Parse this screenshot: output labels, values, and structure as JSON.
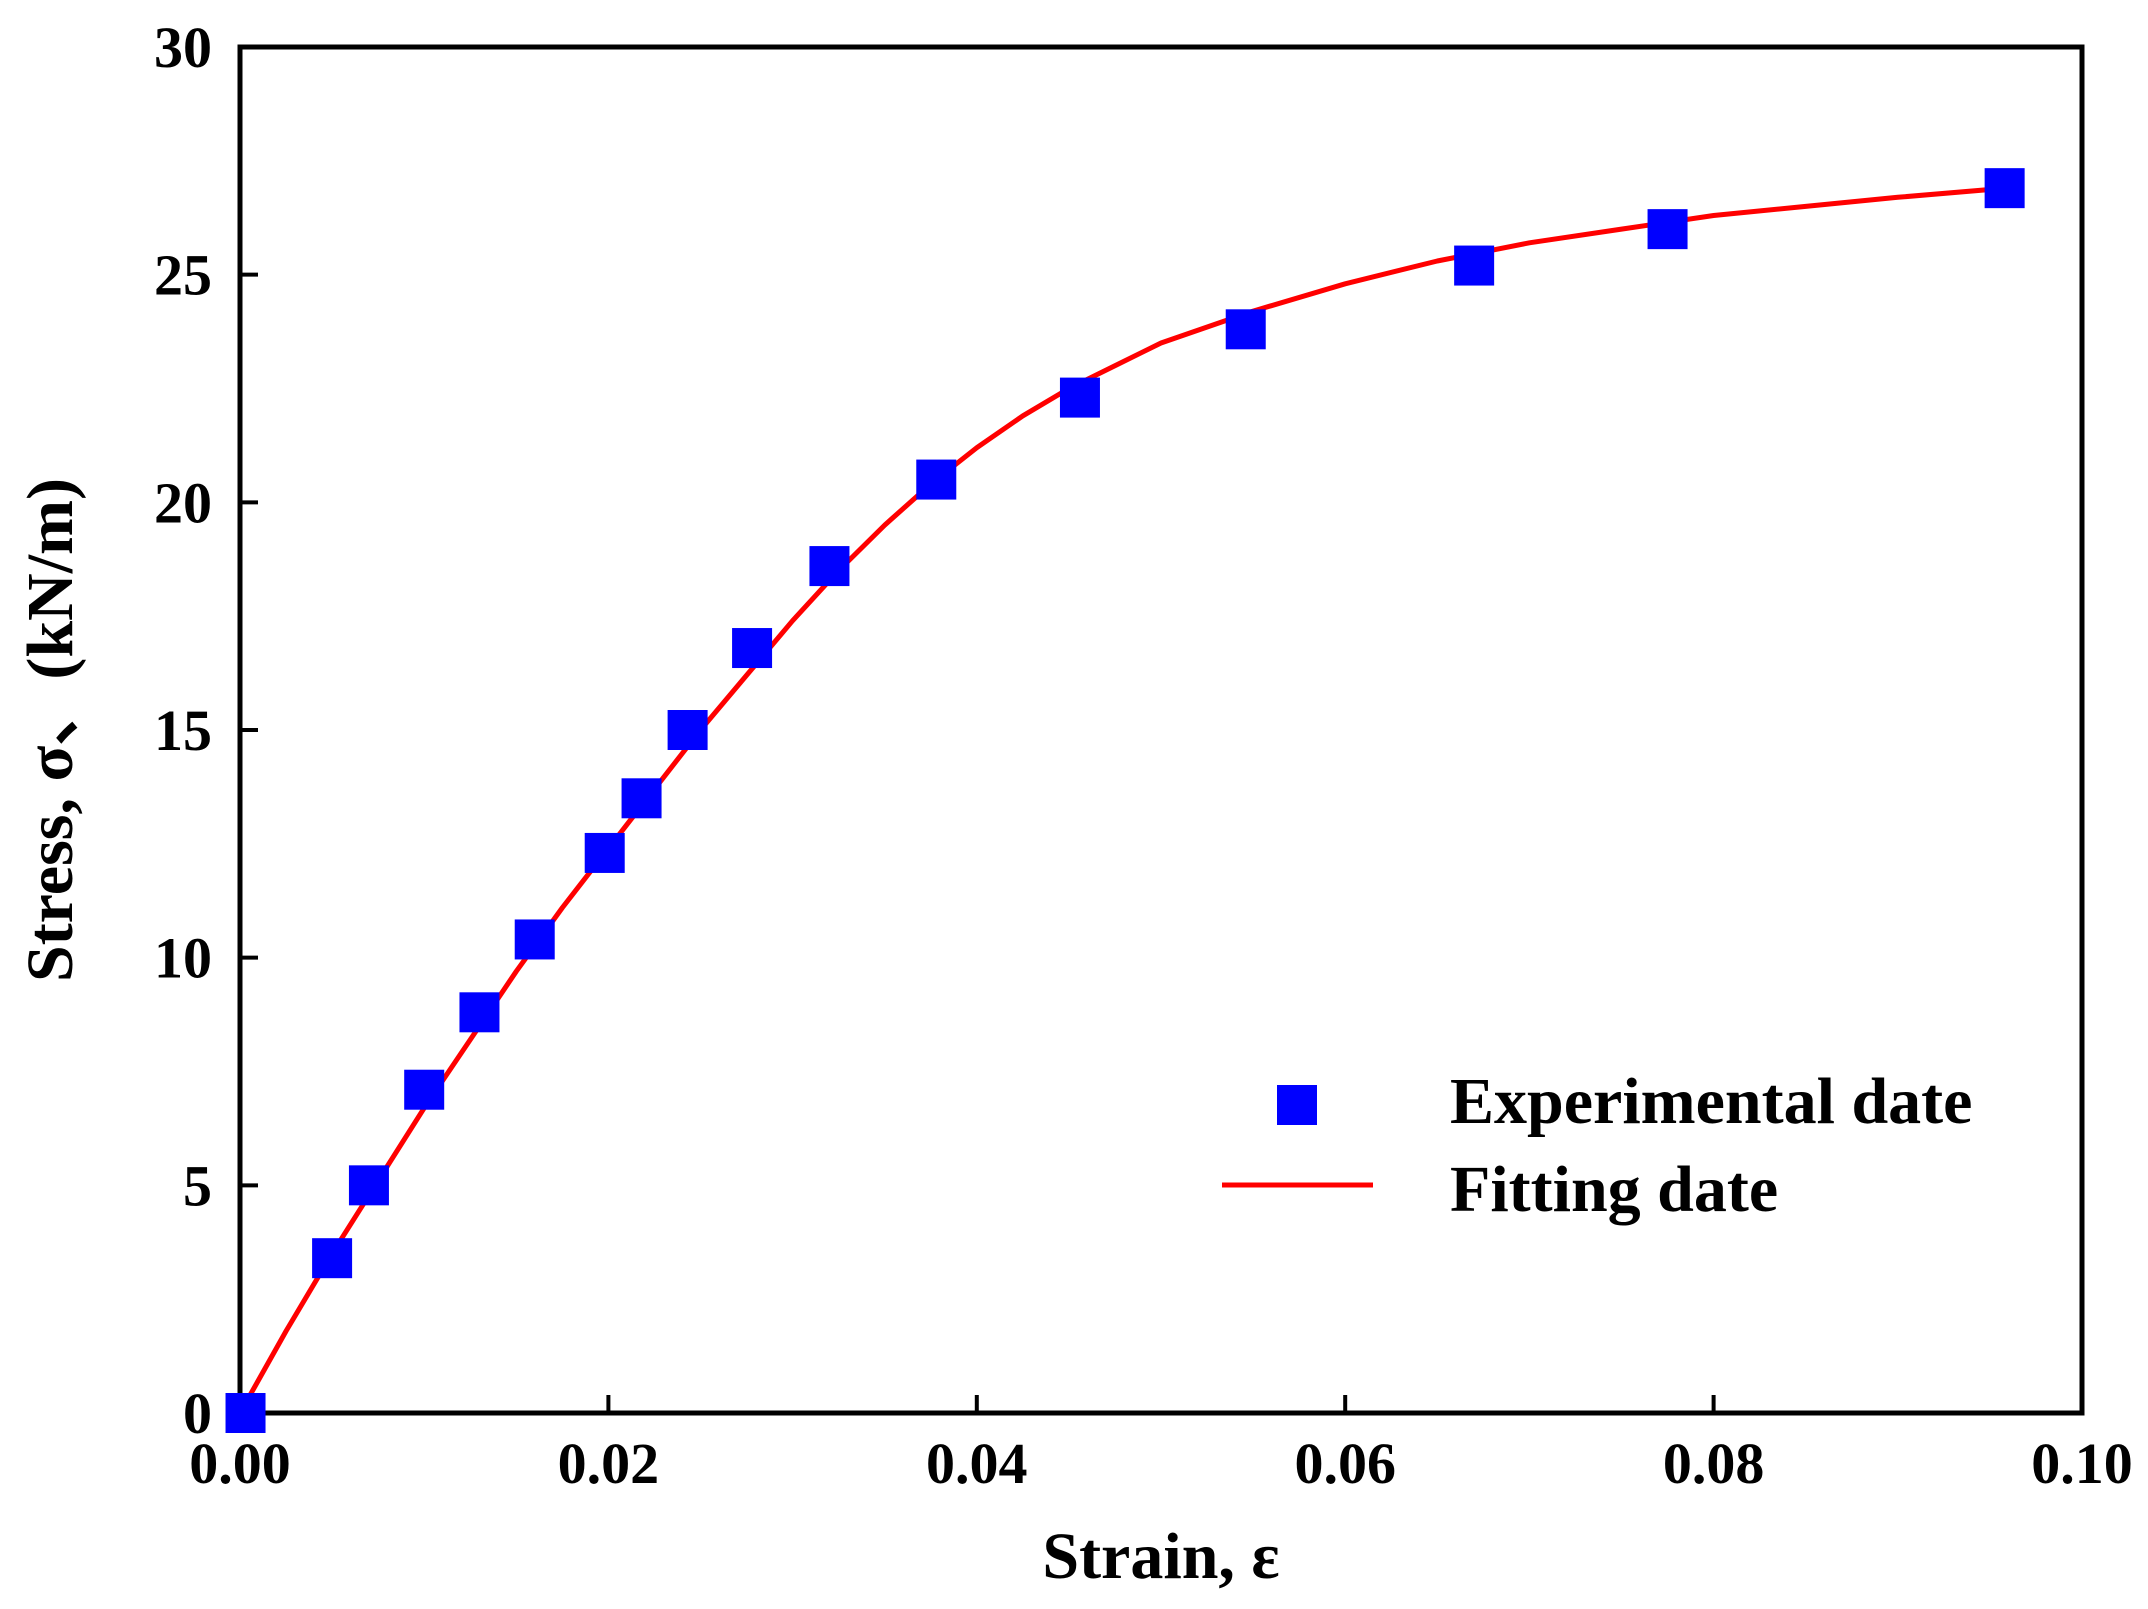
{
  "chart_data": {
    "type": "scatter",
    "title": "",
    "xlabel": "Strain, ε",
    "ylabel": "Stress, σ、(kN/m)",
    "xlim": [
      0.0,
      0.1
    ],
    "ylim": [
      0,
      30
    ],
    "x_ticks": [
      "0.00",
      "0.02",
      "0.04",
      "0.06",
      "0.08",
      "0.10"
    ],
    "y_ticks": [
      "0",
      "5",
      "10",
      "15",
      "20",
      "25",
      "30"
    ],
    "grid": false,
    "legend_position": "bottom-right",
    "series": [
      {
        "name": "Experimental date",
        "kind": "markers",
        "marker": "square",
        "color": "#0000ff",
        "x": [
          0.0003,
          0.005,
          0.007,
          0.01,
          0.013,
          0.016,
          0.0198,
          0.0218,
          0.0243,
          0.0278,
          0.032,
          0.0378,
          0.0456,
          0.0546,
          0.067,
          0.0775,
          0.0958
        ],
        "y": [
          0.0,
          3.4,
          5.0,
          7.1,
          8.8,
          10.4,
          12.3,
          13.5,
          15.0,
          16.8,
          18.6,
          20.5,
          22.3,
          23.8,
          25.2,
          26.0,
          26.9
        ]
      },
      {
        "name": "Fitting date",
        "kind": "line",
        "color": "#ff0000",
        "x": [
          0.0,
          0.0025,
          0.005,
          0.0075,
          0.01,
          0.0125,
          0.015,
          0.0175,
          0.02,
          0.0225,
          0.025,
          0.0275,
          0.03,
          0.0325,
          0.035,
          0.0375,
          0.04,
          0.0425,
          0.045,
          0.0475,
          0.05,
          0.055,
          0.06,
          0.065,
          0.07,
          0.075,
          0.08,
          0.085,
          0.09,
          0.0958
        ],
        "y": [
          0.0,
          1.8,
          3.5,
          5.1,
          6.7,
          8.2,
          9.7,
          11.1,
          12.4,
          13.7,
          15.0,
          16.2,
          17.4,
          18.5,
          19.5,
          20.4,
          21.2,
          21.9,
          22.5,
          23.0,
          23.5,
          24.2,
          24.8,
          25.3,
          25.7,
          26.0,
          26.3,
          26.5,
          26.7,
          26.9
        ]
      }
    ]
  }
}
